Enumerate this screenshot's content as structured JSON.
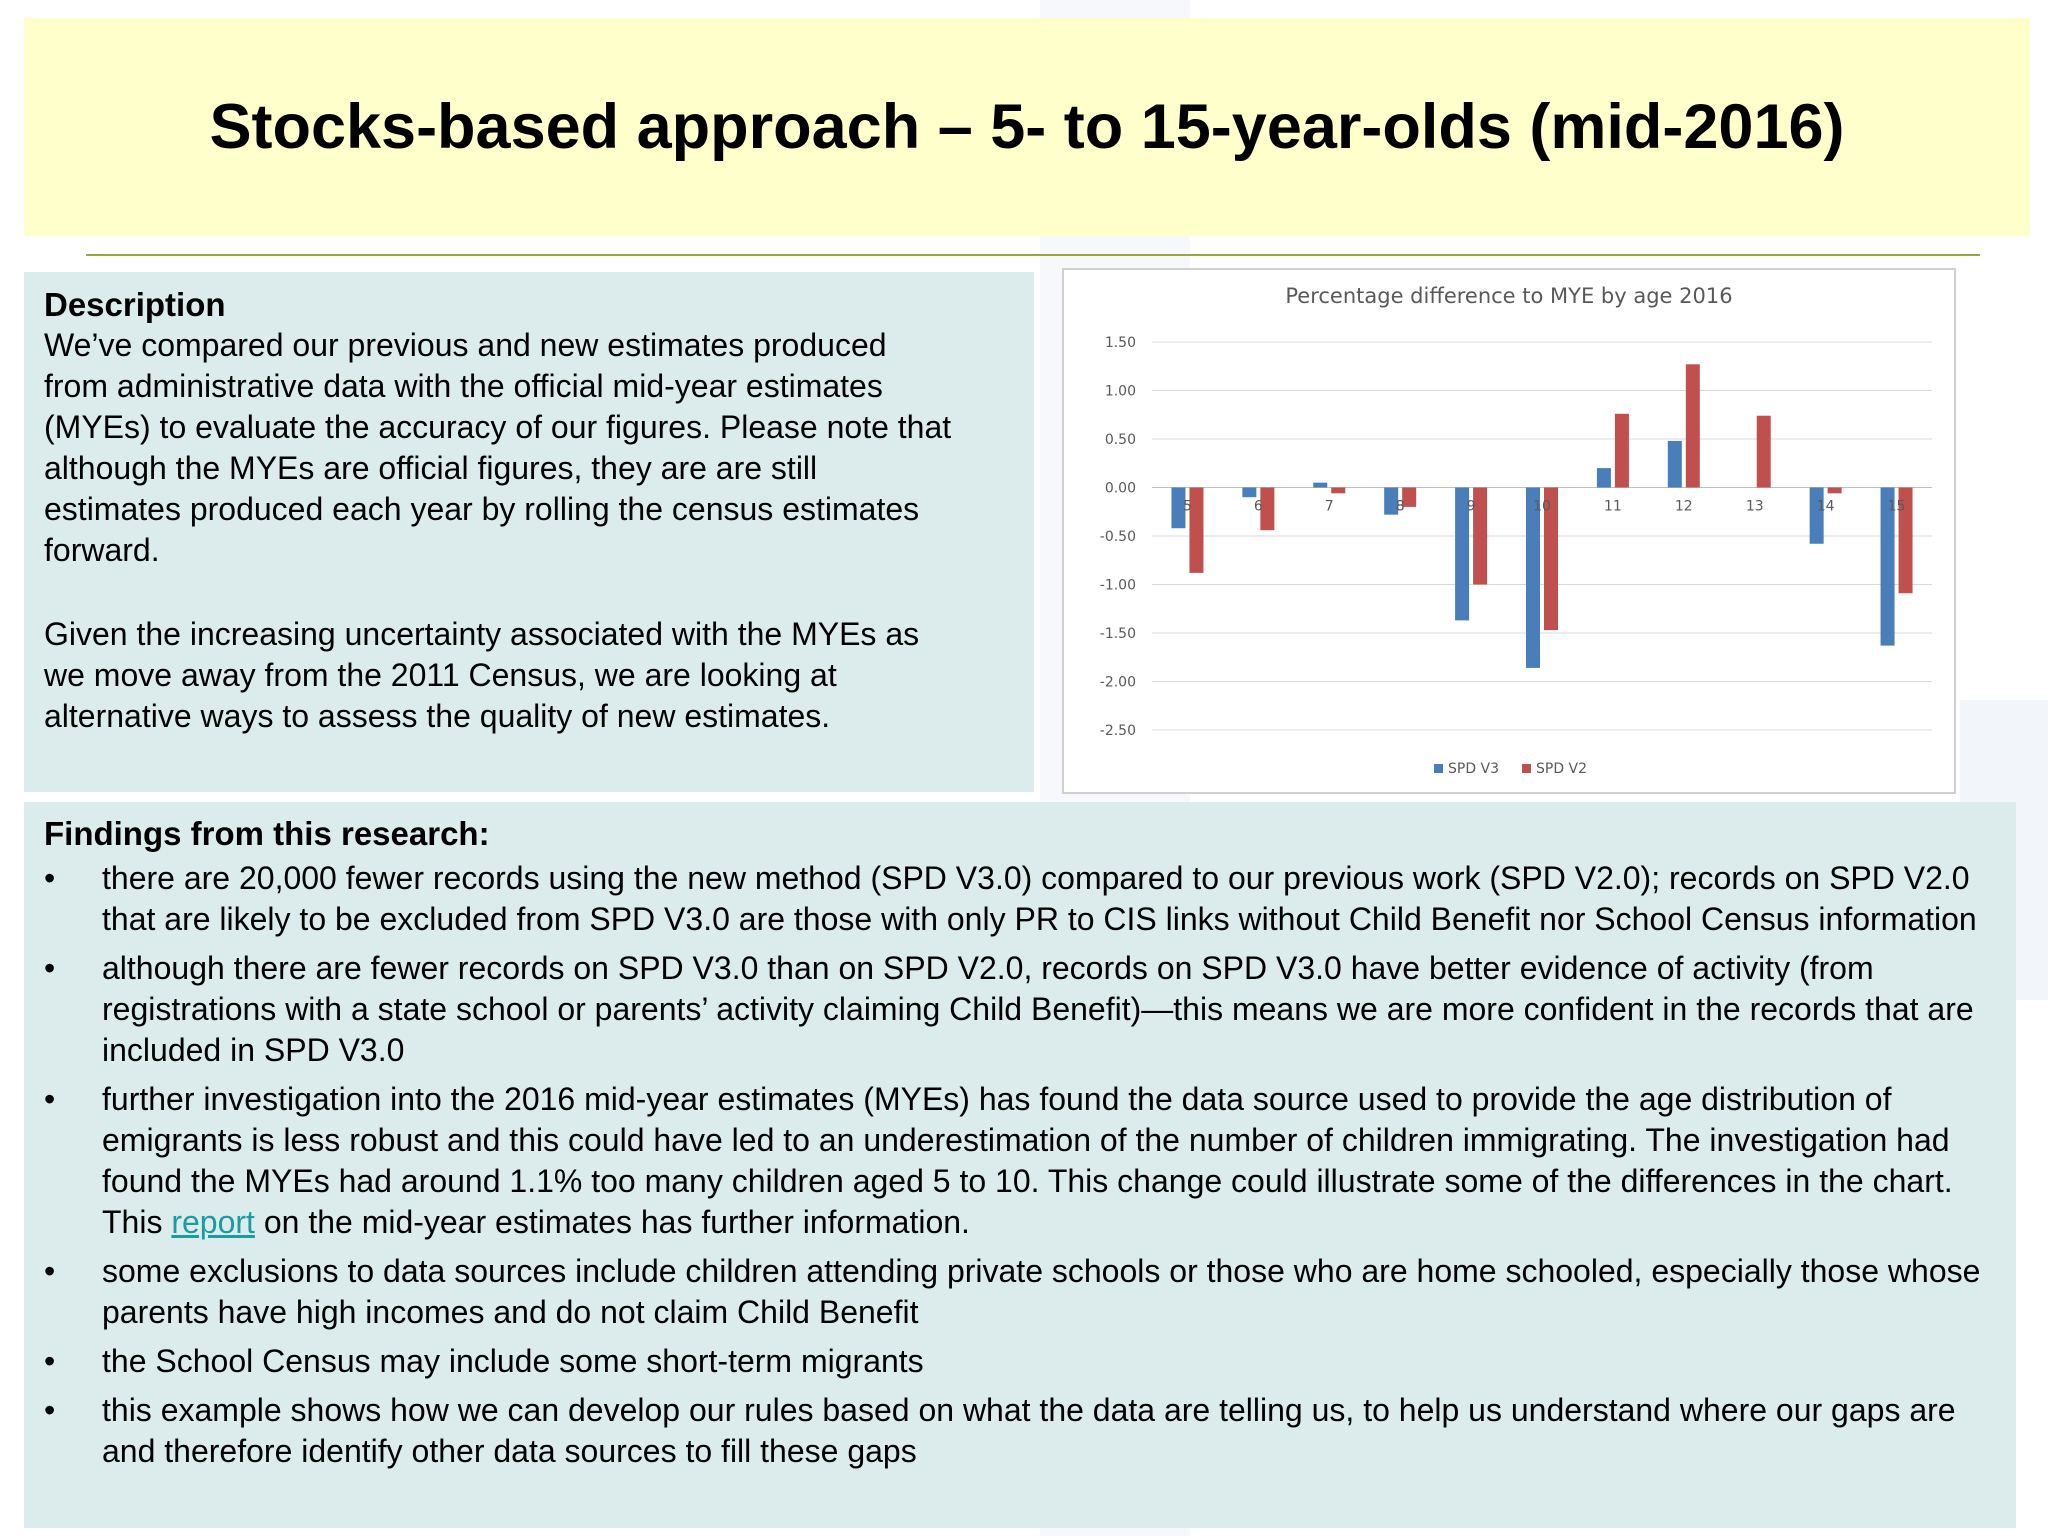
{
  "slide": {
    "title": "Stocks-based approach – 5- to 15-year-olds (mid-2016)"
  },
  "description": {
    "heading": "Description",
    "paragraph1": "We’ve compared our previous and new estimates produced\nfrom administrative data with the official mid-year estimates\n(MYEs) to evaluate the accuracy of our figures. Please note that\nalthough the MYEs are official figures, they are are still\nestimates produced each year by rolling the census estimates\nforward.",
    "paragraph2": "Given the increasing uncertainty associated with the MYEs as\nwe move away from the 2011 Census, we are looking at\nalternative ways to assess the quality of new estimates."
  },
  "findings": {
    "heading": "Findings from this research:",
    "bullet_char": "•",
    "items": [
      "there are 20,000 fewer records using the new method (SPD V3.0) compared to our previous work (SPD V2.0); records on SPD V2.0 that are likely to be excluded from SPD V3.0 are those with only PR to CIS links without Child Benefit nor School Census information",
      "although there are fewer records on SPD V3.0 than on SPD V2.0, records on SPD V3.0 have better evidence of activity (from registrations with a state school or parents’ activity claiming Child Benefit)—this means we are more confident in the records that are included in SPD V3.0",
      "some exclusions to data sources include children attending private schools or those who are home schooled, especially those whose parents have high incomes and do not claim Child Benefit",
      "the School Census may include some short-term migrants",
      "this example shows how we can develop our rules based on what the data are telling us, to help us understand where our gaps are and therefore identify other data sources to fill these gaps"
    ],
    "item3_before_link": "further investigation into the 2016 mid-year estimates (MYEs) has found the data source used to provide the age distribution of emigrants is less robust and this could have led to an underestimation of the number of children immigrating. The investigation had found the MYEs had around 1.1% too many children aged 5 to 10. This change could illustrate some of the differences in the chart. This ",
    "item3_link": "report",
    "item3_after_link": " on the mid-year estimates has further information."
  },
  "chart_data": {
    "type": "bar",
    "title": "Percentage difference to MYE by age 2016",
    "categories": [
      "5",
      "6",
      "7",
      "8",
      "9",
      "10",
      "11",
      "12",
      "13",
      "14",
      "15"
    ],
    "series": [
      {
        "name": "SPD V3",
        "color": "#4a7ebb",
        "values": [
          -0.42,
          -0.1,
          0.05,
          -0.28,
          -1.37,
          -1.86,
          0.2,
          0.48,
          0.0,
          -0.58,
          -1.63
        ]
      },
      {
        "name": "SPD V2",
        "color": "#c0504d",
        "values": [
          -0.88,
          -0.44,
          -0.06,
          -0.2,
          -1.0,
          -1.47,
          0.76,
          1.27,
          0.74,
          -0.06,
          -1.09
        ]
      }
    ],
    "ylim": [
      -2.5,
      1.5
    ],
    "yticks": [
      "1.50",
      "1.00",
      "0.50",
      "0.00",
      "-0.50",
      "-1.00",
      "-1.50",
      "-2.00",
      "-2.50"
    ],
    "ytick_values": [
      1.5,
      1.0,
      0.5,
      0.0,
      -0.5,
      -1.0,
      -1.5,
      -2.0,
      -2.5
    ],
    "grid": true,
    "legend_position": "bottom"
  }
}
